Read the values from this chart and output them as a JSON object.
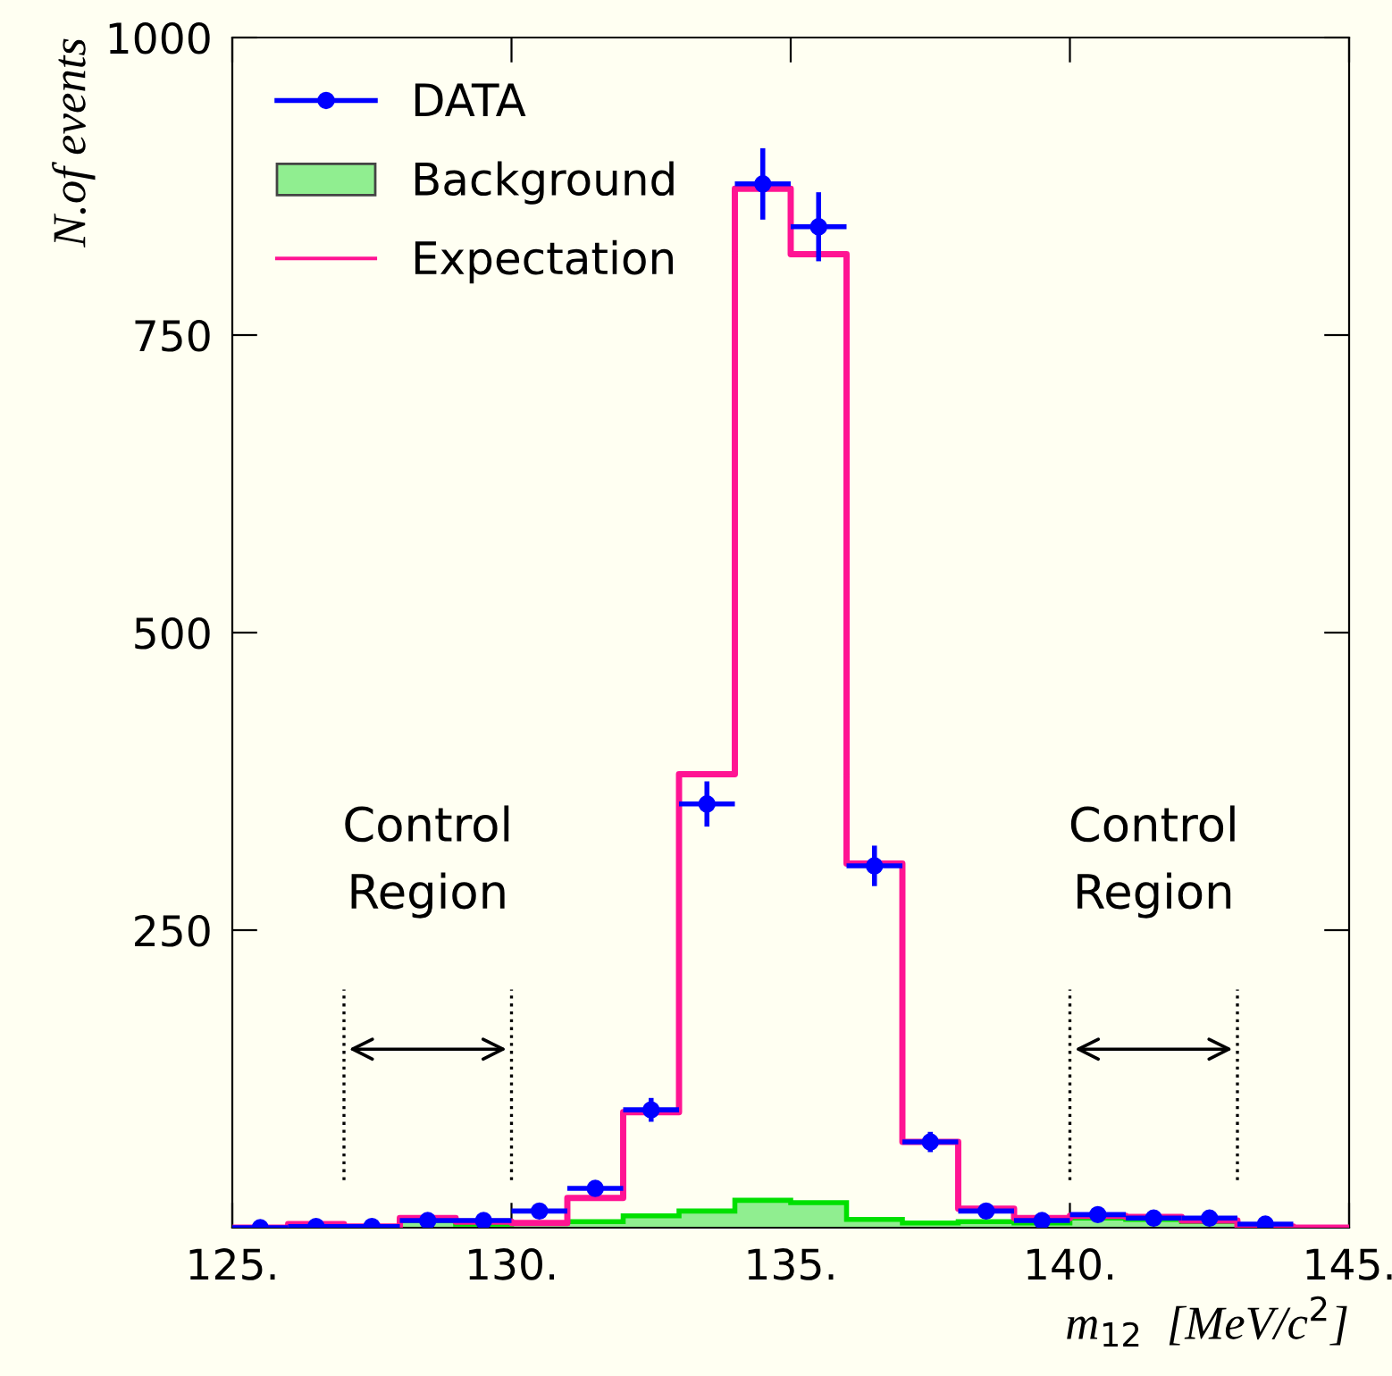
{
  "chart_data": {
    "type": "histogram",
    "bins": [
      125,
      126,
      127,
      128,
      129,
      130,
      131,
      132,
      133,
      134,
      135,
      136,
      137,
      138,
      139,
      140,
      141,
      142,
      143,
      144,
      145
    ],
    "xlabel": "m$_{12}$  [MeV/c$^{2}$]",
    "ylabel": "N.of events",
    "xlim": [
      125,
      145
    ],
    "ylim": [
      0,
      1000
    ],
    "xticks": [
      {
        "value": 125,
        "label": "125."
      },
      {
        "value": 130,
        "label": "130."
      },
      {
        "value": 135,
        "label": "135."
      },
      {
        "value": 140,
        "label": "140."
      },
      {
        "value": 145,
        "label": "145."
      }
    ],
    "yticks": [
      250,
      500,
      750,
      1000
    ],
    "series": [
      {
        "name": "DATA",
        "type": "scatter",
        "marker": "circle",
        "color": "#0000ff",
        "x": [
          125.5,
          126.5,
          127.5,
          128.5,
          129.5,
          130.5,
          131.5,
          132.5,
          133.5,
          134.5,
          135.5,
          136.5,
          137.5,
          138.5,
          139.5,
          140.5,
          141.5,
          142.5,
          143.5
        ],
        "values": [
          0,
          1,
          1,
          6,
          6,
          14,
          33,
          99,
          356,
          877,
          841,
          304,
          72,
          14,
          6,
          11,
          8,
          8,
          3
        ],
        "errors": [
          null,
          1,
          1,
          2.5,
          2.5,
          4,
          6,
          10,
          19,
          30,
          29,
          17,
          8.5,
          4,
          2.5,
          3,
          3,
          3,
          2
        ],
        "xerrors": [
          0.5,
          0.5,
          0.5,
          0.5,
          0.5,
          0.5,
          0.5,
          0.5,
          0.5,
          0.5,
          0.5,
          0.5,
          0.5,
          0.5,
          0.5,
          0.5,
          0.5,
          0.5,
          0.5
        ]
      },
      {
        "name": "Background",
        "color": "#90ee90",
        "values": [
          0,
          0,
          0,
          6,
          3,
          4,
          5,
          10,
          14,
          23,
          21,
          7,
          4,
          5,
          4,
          8,
          7,
          5,
          0,
          0
        ]
      },
      {
        "name": "Expectation",
        "type": "step",
        "color": "#ff1493",
        "x": [
          125,
          126,
          127,
          128,
          129,
          130,
          131,
          132,
          133,
          134,
          135,
          136,
          137,
          138,
          139,
          140,
          141,
          142,
          143,
          144,
          145
        ],
        "values": [
          0,
          3,
          1,
          8,
          5,
          4,
          25,
          97,
          381,
          873,
          818,
          306,
          72,
          16,
          8,
          10,
          9,
          6,
          1,
          0,
          0
        ]
      }
    ],
    "ref_lines": [
      {
        "axis": "x",
        "value": 127,
        "line_style": "dotted"
      },
      {
        "axis": "x",
        "value": 130,
        "line_style": "dotted"
      },
      {
        "axis": "x",
        "value": 140,
        "line_style": "dotted"
      },
      {
        "axis": "x",
        "value": 143,
        "line_style": "dotted"
      }
    ],
    "annotations": [
      "Control\nRegion",
      "Control\nRegion"
    ],
    "legend": "top left",
    "grid": false
  }
}
